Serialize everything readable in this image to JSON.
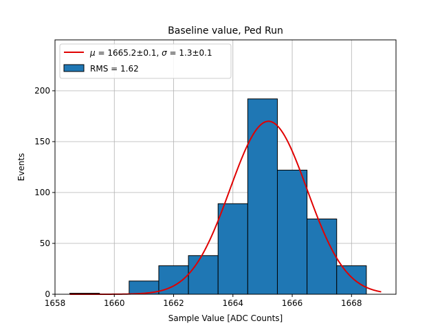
{
  "chart_data": {
    "type": "bar",
    "title": "Baseline value, Ped Run",
    "xlabel": "Sample Value [ADC Counts]",
    "ylabel": "Events",
    "xlim": [
      1658,
      1669.5
    ],
    "ylim": [
      0,
      250
    ],
    "xticks": [
      1658,
      1660,
      1662,
      1664,
      1666,
      1668
    ],
    "yticks": [
      0,
      50,
      100,
      150,
      200
    ],
    "grid": true,
    "legend_position": "top-left",
    "histogram": {
      "name": "RMS = 1.62",
      "color": "#1f77b4",
      "edge_color": "#000000",
      "bin_width": 1,
      "bins": [
        {
          "x": 1659,
          "count": 1
        },
        {
          "x": 1660,
          "count": 0
        },
        {
          "x": 1661,
          "count": 13
        },
        {
          "x": 1662,
          "count": 28
        },
        {
          "x": 1663,
          "count": 38
        },
        {
          "x": 1664,
          "count": 89
        },
        {
          "x": 1665,
          "count": 192
        },
        {
          "x": 1666,
          "count": 122
        },
        {
          "x": 1667,
          "count": 74
        },
        {
          "x": 1668,
          "count": 28
        }
      ]
    },
    "fit": {
      "label_mu": "μ",
      "label_eq1": " = 1665.2±0.1, ",
      "label_sigma": "σ",
      "label_eq2": " = 1.3±0.1",
      "color": "#e00000",
      "mu": 1665.2,
      "sigma": 1.3,
      "amplitude": 170,
      "x_range": [
        1658.5,
        1669
      ]
    }
  }
}
